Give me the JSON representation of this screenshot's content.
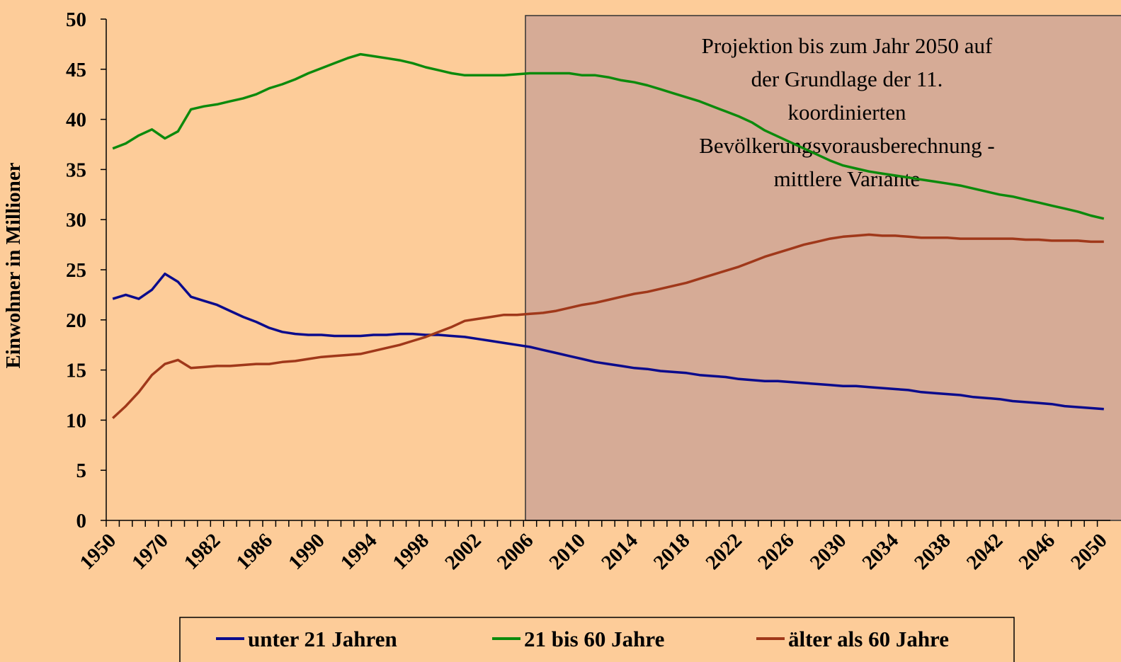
{
  "chart_data": {
    "type": "line",
    "y_label": "Einwohner in Millioner",
    "annotation": [
      "Projektion bis zum Jahr 2050 auf",
      "der Grundlage der 11.",
      "koordinierten",
      "Bevölkerungsvorausberechnung -",
      "mittlere Variante"
    ],
    "categories": [
      "1950",
      null,
      null,
      null,
      "1970",
      null,
      null,
      null,
      "1982",
      null,
      null,
      null,
      "1986",
      null,
      null,
      null,
      "1990",
      null,
      null,
      null,
      "1994",
      null,
      null,
      null,
      "1998",
      null,
      null,
      null,
      "2002",
      null,
      null,
      null,
      "2006",
      null,
      null,
      null,
      "2010",
      null,
      null,
      null,
      "2014",
      null,
      null,
      null,
      "2018",
      null,
      null,
      null,
      "2022",
      null,
      null,
      null,
      "2026",
      null,
      null,
      null,
      "2030",
      null,
      null,
      null,
      "2034",
      null,
      null,
      null,
      "2038",
      null,
      null,
      null,
      "2042",
      null,
      null,
      null,
      "2046",
      null,
      null,
      null,
      "2050"
    ],
    "series": [
      {
        "name": "unter 21 Jahren",
        "color": "#0b0b8c",
        "values": [
          22.1,
          22.5,
          22.1,
          23.0,
          24.6,
          23.8,
          22.3,
          21.9,
          21.5,
          20.9,
          20.3,
          19.8,
          19.2,
          18.8,
          18.6,
          18.5,
          18.5,
          18.4,
          18.4,
          18.4,
          18.5,
          18.5,
          18.6,
          18.6,
          18.5,
          18.5,
          18.4,
          18.3,
          18.1,
          17.9,
          17.7,
          17.5,
          17.3,
          17.0,
          16.7,
          16.4,
          16.1,
          15.8,
          15.6,
          15.4,
          15.2,
          15.1,
          14.9,
          14.8,
          14.7,
          14.5,
          14.4,
          14.3,
          14.1,
          14.0,
          13.9,
          13.9,
          13.8,
          13.7,
          13.6,
          13.5,
          13.4,
          13.4,
          13.3,
          13.2,
          13.1,
          13.0,
          12.8,
          12.7,
          12.6,
          12.5,
          12.3,
          12.2,
          12.1,
          11.9,
          11.8,
          11.7,
          11.6,
          11.4,
          11.3,
          11.2,
          11.1
        ]
      },
      {
        "name": "21 bis 60 Jahre",
        "color": "#0c8a0c",
        "values": [
          37.1,
          37.6,
          38.4,
          39.0,
          38.1,
          38.8,
          41.0,
          41.3,
          41.5,
          41.8,
          42.1,
          42.5,
          43.1,
          43.5,
          44.0,
          44.6,
          45.1,
          45.6,
          46.1,
          46.5,
          46.3,
          46.1,
          45.9,
          45.6,
          45.2,
          44.9,
          44.6,
          44.4,
          44.4,
          44.4,
          44.4,
          44.5,
          44.6,
          44.6,
          44.6,
          44.6,
          44.4,
          44.4,
          44.2,
          43.9,
          43.7,
          43.4,
          43.0,
          42.6,
          42.2,
          41.8,
          41.3,
          40.8,
          40.3,
          39.7,
          38.9,
          38.3,
          37.7,
          37.1,
          36.5,
          35.9,
          35.4,
          35.1,
          34.8,
          34.6,
          34.4,
          34.2,
          34.0,
          33.8,
          33.6,
          33.4,
          33.1,
          32.8,
          32.5,
          32.3,
          32.0,
          31.7,
          31.4,
          31.1,
          30.8,
          30.4,
          30.1
        ]
      },
      {
        "name": "älter als 60 Jahre",
        "color": "#a0381a",
        "values": [
          10.2,
          11.4,
          12.8,
          14.5,
          15.6,
          16.0,
          15.2,
          15.3,
          15.4,
          15.4,
          15.5,
          15.6,
          15.6,
          15.8,
          15.9,
          16.1,
          16.3,
          16.4,
          16.5,
          16.6,
          16.9,
          17.2,
          17.5,
          17.9,
          18.3,
          18.8,
          19.3,
          19.9,
          20.1,
          20.3,
          20.5,
          20.5,
          20.6,
          20.7,
          20.9,
          21.2,
          21.5,
          21.7,
          22.0,
          22.3,
          22.6,
          22.8,
          23.1,
          23.4,
          23.7,
          24.1,
          24.5,
          24.9,
          25.3,
          25.8,
          26.3,
          26.7,
          27.1,
          27.5,
          27.8,
          28.1,
          28.3,
          28.4,
          28.5,
          28.4,
          28.4,
          28.3,
          28.2,
          28.2,
          28.2,
          28.1,
          28.1,
          28.1,
          28.1,
          28.1,
          28.0,
          28.0,
          27.9,
          27.9,
          27.9,
          27.8,
          27.8
        ]
      }
    ],
    "ylim": [
      0,
      50
    ],
    "yticks": [
      0,
      5,
      10,
      15,
      20,
      25,
      30,
      35,
      40,
      45,
      50
    ],
    "grid": false
  }
}
